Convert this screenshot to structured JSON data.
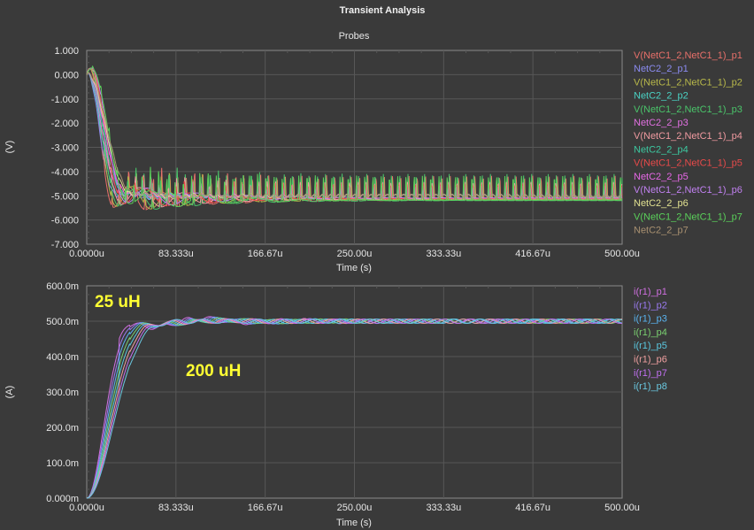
{
  "window": {
    "title": "Transient Analysis"
  },
  "chart_data": [
    {
      "type": "line",
      "title": "Probes",
      "xlabel": "Time (s)",
      "ylabel": "(V)",
      "xlim": [
        0,
        500
      ],
      "ylim": [
        -7,
        1
      ],
      "x_ticks": [
        "0.0000u",
        "83.333u",
        "166.67u",
        "250.00u",
        "333.33u",
        "416.67u",
        "500.00u"
      ],
      "y_ticks": [
        "1.000",
        "0.000",
        "-1.000",
        "-2.000",
        "-3.000",
        "-4.000",
        "-5.000",
        "-6.000",
        "-7.000"
      ],
      "grid": true,
      "legend_position": "right",
      "series": [
        {
          "name": "V(NetC1_2,NetC1_1)_p1",
          "color": "#e8706a",
          "settle": -5.0,
          "ring_amp": 1.0
        },
        {
          "name": "NetC2_2_p1",
          "color": "#8b8bf0",
          "settle": -5.0,
          "ring_amp": 0.05
        },
        {
          "name": "V(NetC1_2,NetC1_1)_p2",
          "color": "#b8b84a",
          "settle": -5.0,
          "ring_amp": 0.9
        },
        {
          "name": "NetC2_2_p2",
          "color": "#4ad2c4",
          "settle": -5.0,
          "ring_amp": 0.05
        },
        {
          "name": "V(NetC1_2,NetC1_1)_p3",
          "color": "#4ac46a",
          "settle": -5.0,
          "ring_amp": 1.1
        },
        {
          "name": "NetC2_2_p3",
          "color": "#e070e0",
          "settle": -5.0,
          "ring_amp": 0.05
        },
        {
          "name": "V(NetC1_2,NetC1_1)_p4",
          "color": "#f09aa0",
          "settle": -5.0,
          "ring_amp": 0.7
        },
        {
          "name": "NetC2_2_p4",
          "color": "#3cc8a0",
          "settle": -5.0,
          "ring_amp": 0.05
        },
        {
          "name": "V(NetC1_2,NetC1_1)_p5",
          "color": "#e84a4a",
          "settle": -5.0,
          "ring_amp": 0.6
        },
        {
          "name": "NetC2_2_p5",
          "color": "#e868e8",
          "settle": -5.0,
          "ring_amp": 0.05
        },
        {
          "name": "V(NetC1_2,NetC1_1)_p6",
          "color": "#c080f0",
          "settle": -5.0,
          "ring_amp": 0.5
        },
        {
          "name": "NetC2_2_p6",
          "color": "#e0e090",
          "settle": -5.0,
          "ring_amp": 0.05
        },
        {
          "name": "V(NetC1_2,NetC1_1)_p7",
          "color": "#5ad05a",
          "settle": -5.0,
          "ring_amp": 1.0
        },
        {
          "name": "NetC2_2_p7",
          "color": "#a89070",
          "settle": -5.0,
          "ring_amp": 0.05
        }
      ]
    },
    {
      "type": "line",
      "title": "",
      "xlabel": "Time (s)",
      "ylabel": "(A)",
      "xlim": [
        0,
        500
      ],
      "ylim": [
        0,
        600
      ],
      "x_ticks": [
        "0.0000u",
        "83.333u",
        "166.67u",
        "250.00u",
        "333.33u",
        "416.67u",
        "500.00u"
      ],
      "y_ticks": [
        "600.0m",
        "500.0m",
        "400.0m",
        "300.0m",
        "200.0m",
        "100.0m",
        "0.000m"
      ],
      "grid": true,
      "legend_position": "right",
      "annotations": [
        "25 uH",
        "200 uH"
      ],
      "series": [
        {
          "name": "i(r1)_p1",
          "color": "#d070e0",
          "settle": 500
        },
        {
          "name": "i(r1)_p2",
          "color": "#9a7af0",
          "settle": 500
        },
        {
          "name": "i(r1)_p3",
          "color": "#5ab4f0",
          "settle": 500
        },
        {
          "name": "i(r1)_p4",
          "color": "#7ad070",
          "settle": 500
        },
        {
          "name": "i(r1)_p5",
          "color": "#5ac8e0",
          "settle": 500
        },
        {
          "name": "i(r1)_p6",
          "color": "#f0a0a0",
          "settle": 500
        },
        {
          "name": "i(r1)_p7",
          "color": "#c070f0",
          "settle": 500
        },
        {
          "name": "i(r1)_p8",
          "color": "#6ac8e0",
          "settle": 500
        }
      ]
    }
  ]
}
